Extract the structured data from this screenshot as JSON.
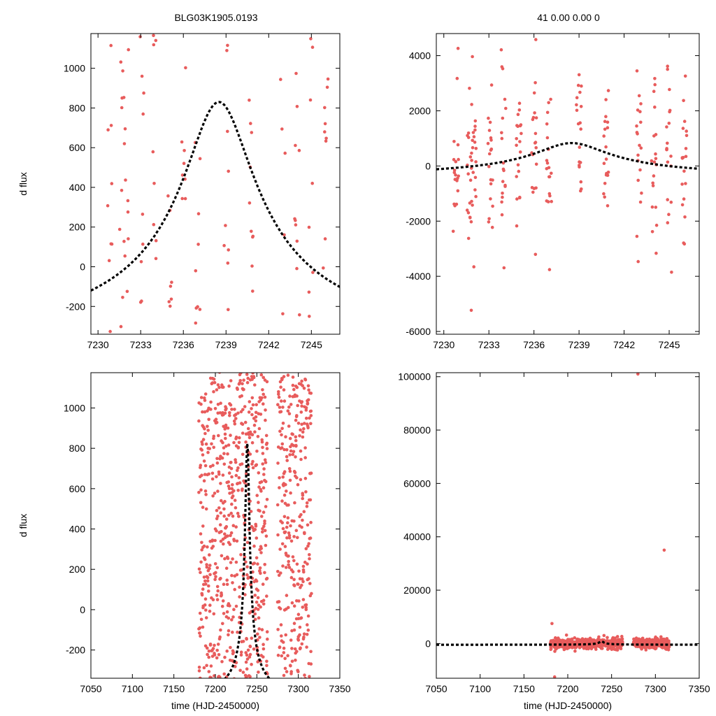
{
  "figure": {
    "title_left": "BLG03K1905.0193",
    "title_right": "41  0.00  0.00  0"
  },
  "colors": {
    "points": "#e85c5c",
    "model": "#000000",
    "frame": "#000000",
    "background": "#ffffff"
  },
  "model": {
    "peak_time": 7238.5,
    "peak_flux": 830,
    "tau_scale": 3.3,
    "baseline": -460
  },
  "chart_data": [
    {
      "type": "scatter",
      "panel": "top-left",
      "title": "BLG03K1905.0193",
      "xlabel": "",
      "ylabel": "d flux",
      "xlim": [
        7229.5,
        7247
      ],
      "ylim": [
        -340,
        1175
      ],
      "xticks": [
        7230,
        7233,
        7236,
        7239,
        7242,
        7245
      ],
      "yticks": [
        -200,
        0,
        200,
        400,
        600,
        800,
        1000
      ],
      "series": [
        {
          "name": "data",
          "point_count": 180,
          "x_range": [
            7229.5,
            7247
          ]
        },
        {
          "name": "model",
          "style": "dashed-line"
        }
      ]
    },
    {
      "type": "scatter",
      "panel": "top-right",
      "title": "41  0.00  0.00  0",
      "xlabel": "",
      "ylabel": "",
      "xlim": [
        7229.5,
        7247
      ],
      "ylim": [
        -6100,
        4800
      ],
      "xticks": [
        7230,
        7233,
        7236,
        7239,
        7242,
        7245
      ],
      "yticks": [
        -6000,
        -4000,
        -2000,
        0,
        2000,
        4000
      ],
      "series": [
        {
          "name": "data",
          "point_count": 260,
          "x_range": [
            7229.5,
            7247
          ]
        },
        {
          "name": "model",
          "style": "dashed-line"
        }
      ]
    },
    {
      "type": "scatter",
      "panel": "bottom-left",
      "title": "",
      "xlabel": "time (HJD-2450000)",
      "ylabel": "d flux",
      "xlim": [
        7050,
        7350
      ],
      "ylim": [
        -340,
        1175
      ],
      "xticks": [
        7050,
        7100,
        7150,
        7200,
        7250,
        7300,
        7350
      ],
      "yticks": [
        -200,
        0,
        200,
        400,
        600,
        800,
        1000
      ],
      "series": [
        {
          "name": "data",
          "point_count": 1100,
          "x_range": [
            7180,
            7315
          ]
        },
        {
          "name": "model",
          "style": "dashed-line"
        }
      ]
    },
    {
      "type": "scatter",
      "panel": "bottom-right",
      "title": "",
      "xlabel": "time (HJD-2450000)",
      "ylabel": "",
      "xlim": [
        7050,
        7350
      ],
      "ylim": [
        -13000,
        101500
      ],
      "xticks": [
        7050,
        7100,
        7150,
        7200,
        7250,
        7300,
        7350
      ],
      "yticks": [
        0,
        20000,
        40000,
        60000,
        80000,
        100000
      ],
      "outliers": [
        {
          "x": 7280,
          "y": 101000
        },
        {
          "x": 7310,
          "y": 35000
        },
        {
          "x": 7182,
          "y": 7500
        },
        {
          "x": 7185,
          "y": -12500
        }
      ],
      "series": [
        {
          "name": "data",
          "point_count": 900,
          "x_range": [
            7180,
            7315
          ]
        },
        {
          "name": "model",
          "style": "dashed-line"
        }
      ]
    }
  ]
}
